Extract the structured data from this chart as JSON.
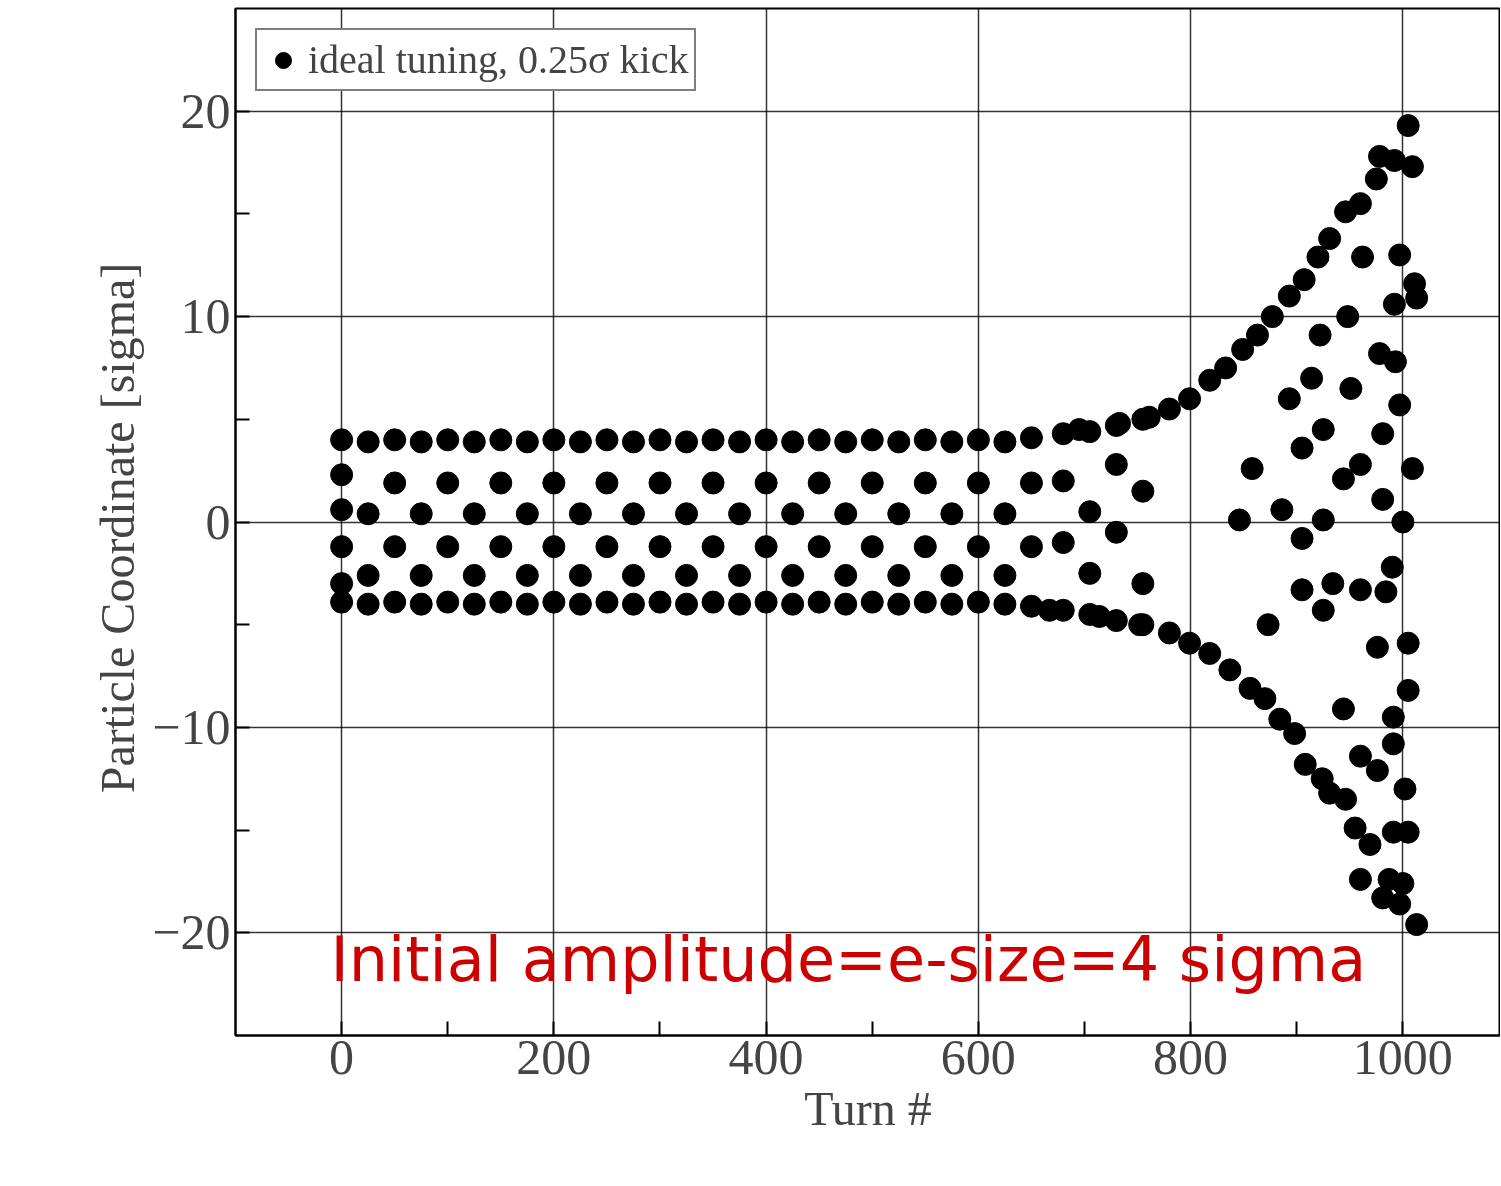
{
  "chart_data": {
    "type": "scatter",
    "xlabel": "Turn #",
    "ylabel": "Particle Coordinate  [sigma]",
    "annotations": [
      "Initial amplitude=e-size=4 sigma"
    ],
    "xlim": [
      -100,
      1092
    ],
    "ylim": [
      -25,
      25
    ],
    "xticks": [
      0,
      {
        "value": 100,
        "label": null
      },
      200,
      {
        "value": 300,
        "label": null
      },
      400,
      {
        "value": 500,
        "label": null
      },
      600,
      {
        "value": 700,
        "label": null
      },
      800,
      {
        "value": 900,
        "label": null
      },
      1000
    ],
    "yticks": [
      -20,
      {
        "value": -15,
        "label": null
      },
      -10,
      {
        "value": -5,
        "label": null
      },
      0,
      {
        "value": 5,
        "label": null
      },
      10,
      {
        "value": 15,
        "label": null
      },
      20
    ],
    "grid": true,
    "legend": "top left",
    "marker": "circle",
    "series": [
      {
        "name": "ideal tuning, 0.25σ kick",
        "color": "#000000",
        "x": [
          0,
          0,
          0,
          0,
          0,
          0,
          25,
          25,
          25,
          25,
          50,
          50,
          50,
          50,
          75,
          75,
          75,
          75,
          100,
          100,
          100,
          100,
          125,
          125,
          125,
          125,
          150,
          150,
          150,
          150,
          175,
          175,
          175,
          175,
          200,
          200,
          200,
          200,
          225,
          225,
          225,
          225,
          250,
          250,
          250,
          250,
          275,
          275,
          275,
          275,
          300,
          300,
          300,
          300,
          325,
          325,
          325,
          325,
          350,
          350,
          350,
          350,
          375,
          375,
          375,
          375,
          400,
          400,
          400,
          400,
          425,
          425,
          425,
          425,
          450,
          450,
          450,
          450,
          475,
          475,
          475,
          475,
          500,
          500,
          500,
          500,
          525,
          525,
          525,
          525,
          550,
          550,
          550,
          550,
          575,
          575,
          575,
          575,
          600,
          600,
          600,
          600,
          625,
          625,
          625,
          625,
          650,
          650,
          650,
          650,
          680,
          680,
          680,
          680,
          705,
          705,
          705,
          705,
          730,
          730,
          730,
          730,
          755,
          755,
          755,
          755,
          1005,
          978,
          992,
          1009,
          975,
          960,
          946,
          931,
          920,
          907,
          893,
          877,
          863,
          849,
          833,
          818,
          799,
          780,
          761,
          733,
          695,
          962,
          992,
          997,
          1011,
          1013,
          948,
          978,
          993,
          997,
          951,
          922,
          914,
          893,
          925,
          981,
          1009,
          960,
          905,
          858,
          886,
          925,
          944,
          1000,
          981,
          905,
          846,
          1005,
          976,
          960,
          984,
          990,
          925,
          905,
          934,
          873,
          1005,
          991,
          991,
          944,
          960,
          976,
          1002,
          1005,
          991,
          969,
          955,
          946,
          931,
          960,
          987,
          1000,
          981,
          997,
          1013,
          924,
          908,
          898,
          884,
          870,
          856,
          837,
          818,
          799,
          780,
          752,
          714,
          667
        ],
        "values": [
          4.0,
          2.3,
          0.6,
          -1.2,
          -3.0,
          -3.9,
          3.9,
          0.4,
          -2.6,
          -4.0,
          4.0,
          1.9,
          -1.2,
          -3.9,
          3.9,
          0.4,
          -2.6,
          -4.0,
          4.0,
          1.9,
          -1.2,
          -3.9,
          3.9,
          0.4,
          -2.6,
          -4.0,
          4.0,
          1.9,
          -1.2,
          -3.9,
          3.9,
          0.4,
          -2.6,
          -4.0,
          4.0,
          1.9,
          -1.2,
          -3.9,
          3.9,
          0.4,
          -2.6,
          -4.0,
          4.0,
          1.9,
          -1.2,
          -3.9,
          3.9,
          0.4,
          -2.6,
          -4.0,
          4.0,
          1.9,
          -1.2,
          -3.9,
          3.9,
          0.4,
          -2.6,
          -4.0,
          4.0,
          1.9,
          -1.2,
          -3.9,
          3.9,
          0.4,
          -2.6,
          -4.0,
          4.0,
          1.9,
          -1.2,
          -3.9,
          3.9,
          0.4,
          -2.6,
          -4.0,
          4.0,
          1.9,
          -1.2,
          -3.9,
          3.9,
          0.4,
          -2.6,
          -4.0,
          4.0,
          1.9,
          -1.2,
          -3.9,
          3.9,
          0.4,
          -2.6,
          -4.0,
          4.0,
          1.9,
          -1.2,
          -3.9,
          3.9,
          0.4,
          -2.6,
          -4.0,
          4.0,
          1.9,
          -1.2,
          -3.9,
          3.9,
          0.4,
          -2.6,
          -4.0,
          4.1,
          1.9,
          -1.2,
          -4.1,
          4.3,
          2.0,
          -1.0,
          -4.3,
          4.4,
          0.5,
          -2.5,
          -4.5,
          4.7,
          2.8,
          -0.5,
          -4.8,
          5.0,
          1.5,
          -3.0,
          -5.0,
          19.3,
          17.8,
          17.6,
          17.3,
          16.7,
          15.5,
          15.1,
          13.8,
          12.9,
          11.8,
          11.0,
          10.0,
          9.1,
          8.4,
          7.5,
          6.9,
          6.0,
          5.5,
          5.1,
          4.8,
          4.5,
          12.9,
          10.6,
          13.0,
          11.6,
          10.9,
          10.0,
          8.2,
          7.8,
          5.7,
          6.5,
          9.1,
          7.0,
          6.0,
          4.5,
          4.3,
          2.6,
          2.8,
          3.6,
          2.6,
          0.6,
          0.1,
          2.1,
          0.0,
          1.1,
          -0.8,
          0.1,
          -5.9,
          -6.1,
          -3.3,
          -3.4,
          -2.2,
          -4.3,
          -3.3,
          -3.0,
          -5.0,
          -8.2,
          -9.5,
          -10.8,
          -9.1,
          -11.4,
          -12.1,
          -13.0,
          -15.1,
          -15.1,
          -15.7,
          -14.9,
          -13.5,
          -13.2,
          -17.4,
          -17.4,
          -17.6,
          -18.3,
          -18.6,
          -19.6,
          -12.5,
          -11.8,
          -10.3,
          -9.6,
          -8.6,
          -8.1,
          -7.2,
          -6.4,
          -5.9,
          -5.4,
          -5.0,
          -4.6,
          -4.3
        ]
      }
    ]
  }
}
